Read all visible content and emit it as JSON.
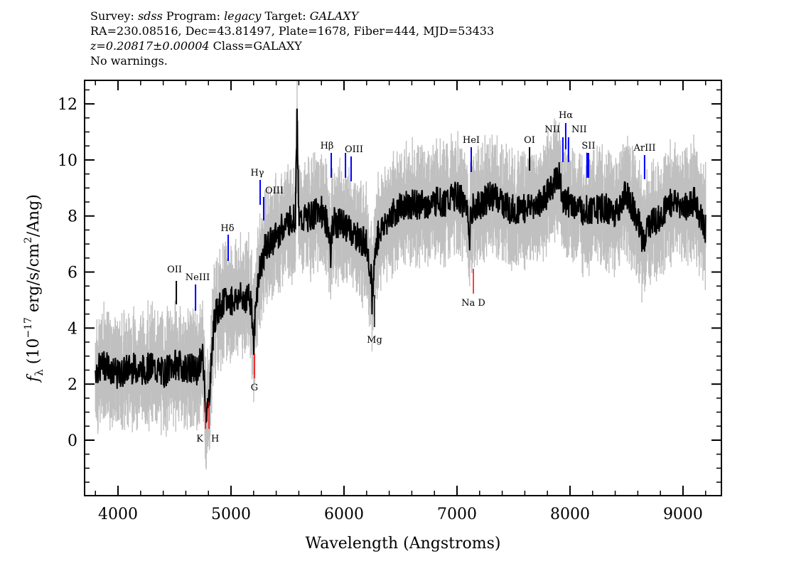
{
  "header": {
    "line1": {
      "survey_label": "Survey:",
      "survey": "sdss",
      "program_label": "Program:",
      "program": "legacy",
      "target_label": "Target:",
      "target": "GALAXY"
    },
    "line2": "RA=230.08516, Dec=43.81497, Plate=1678, Fiber=444, MJD=53433",
    "line3": {
      "redshift": "z=0.20817±0.00004",
      "class": "Class=GALAXY"
    },
    "line4": "No warnings."
  },
  "chart_data": {
    "type": "line",
    "xlabel": "Wavelength (Angstroms)",
    "ylabel": "f_λ (10^-17 erg/s/cm^2/Ang)",
    "xlim": [
      3704,
      9340
    ],
    "ylim": [
      -1.98,
      12.84
    ],
    "xticks": [
      4000,
      5000,
      6000,
      7000,
      8000,
      9000
    ],
    "yticks": [
      0,
      2,
      4,
      6,
      8,
      10,
      12
    ],
    "colors": {
      "flux": "#000000",
      "error_band": "#c0c0c0",
      "emission": "#0000ff",
      "absorption": "#ff0000",
      "sky": "#000000"
    },
    "series": [
      {
        "x": [
          3800,
          3900,
          4000,
          4100,
          4200,
          4300,
          4400,
          4500,
          4600,
          4700,
          4750,
          4780,
          4800,
          4850,
          4900,
          5000,
          5100,
          5180,
          5200,
          5220,
          5250,
          5300,
          5400,
          5500,
          5570,
          5585,
          5600,
          5700,
          5800,
          5870,
          5880,
          5900,
          6000,
          6100,
          6200,
          6240,
          6250,
          6270,
          6300,
          6400,
          6500,
          6600,
          6700,
          6820,
          6830,
          6840,
          6900,
          7000,
          7100,
          7110,
          7120,
          7200,
          7300,
          7400,
          7500,
          7600,
          7700,
          7800,
          7900,
          7950,
          8000,
          8100,
          8200,
          8300,
          8400,
          8500,
          8600,
          8650,
          8700,
          8800,
          8900,
          9000,
          9100,
          9200
        ],
        "y": [
          2.5,
          2.7,
          2.3,
          2.6,
          2.5,
          2.6,
          2.4,
          2.7,
          2.6,
          2.5,
          3.0,
          1.0,
          1.2,
          4.3,
          4.8,
          5.0,
          5.1,
          5.0,
          3.3,
          5.0,
          6.0,
          6.8,
          7.3,
          7.8,
          8.0,
          11.5,
          7.8,
          8.0,
          8.2,
          7.5,
          6.5,
          7.8,
          7.7,
          7.3,
          7.0,
          6.0,
          4.8,
          6.5,
          7.3,
          8.0,
          8.3,
          8.4,
          8.4,
          8.5,
          9.0,
          8.5,
          8.5,
          8.7,
          8.3,
          6.6,
          8.2,
          8.4,
          8.7,
          8.5,
          8.2,
          8.3,
          8.4,
          8.8,
          9.5,
          8.5,
          8.5,
          8.2,
          8.2,
          8.3,
          8.1,
          8.8,
          7.9,
          7.0,
          7.7,
          8.0,
          8.5,
          8.3,
          8.5,
          7.5
        ]
      }
    ],
    "emission_lines": [
      {
        "label": "OII",
        "wavelength": 4516,
        "color": "#000000"
      },
      {
        "label": "NeIII",
        "wavelength": 4686,
        "color": "#0000ff"
      },
      {
        "label": "Hδ",
        "wavelength": 4975,
        "color": "#0000ff"
      },
      {
        "label": "Hγ",
        "wavelength": 5258,
        "color": "#0000ff"
      },
      {
        "label": "OIII",
        "wavelength": 5289,
        "color": "#0000ff"
      },
      {
        "label": "Hβ",
        "wavelength": 5887,
        "color": "#0000ff"
      },
      {
        "label": "OIII",
        "wavelength": 6013,
        "color": "#0000ff"
      },
      {
        "label": "",
        "wavelength": 6063,
        "color": "#0000ff"
      },
      {
        "label": "HeI",
        "wavelength": 7126,
        "color": "#0000ff"
      },
      {
        "label": "OI",
        "wavelength": 7642,
        "color": "#000000"
      },
      {
        "label": "NII",
        "wavelength": 7937,
        "color": "#0000ff"
      },
      {
        "label": "Hα",
        "wavelength": 7962,
        "color": "#0000ff"
      },
      {
        "label": "NII",
        "wavelength": 7987,
        "color": "#0000ff"
      },
      {
        "label": "SII",
        "wavelength": 8151,
        "color": "#0000ff"
      },
      {
        "label": "",
        "wavelength": 8164,
        "color": "#0000ff"
      },
      {
        "label": "ArIII",
        "wavelength": 8660,
        "color": "#0000ff"
      }
    ],
    "absorption_lines": [
      {
        "label": "K",
        "wavelength": 4774,
        "color": "#ff0000"
      },
      {
        "label": "H",
        "wavelength": 4805,
        "color": "#ff0000"
      },
      {
        "label": "G",
        "wavelength": 5208,
        "color": "#ff0000"
      },
      {
        "label": "Mg",
        "wavelength": 6270,
        "color": "#000000"
      },
      {
        "label": "Na D",
        "wavelength": 7145,
        "color": "#ff0000"
      }
    ]
  }
}
